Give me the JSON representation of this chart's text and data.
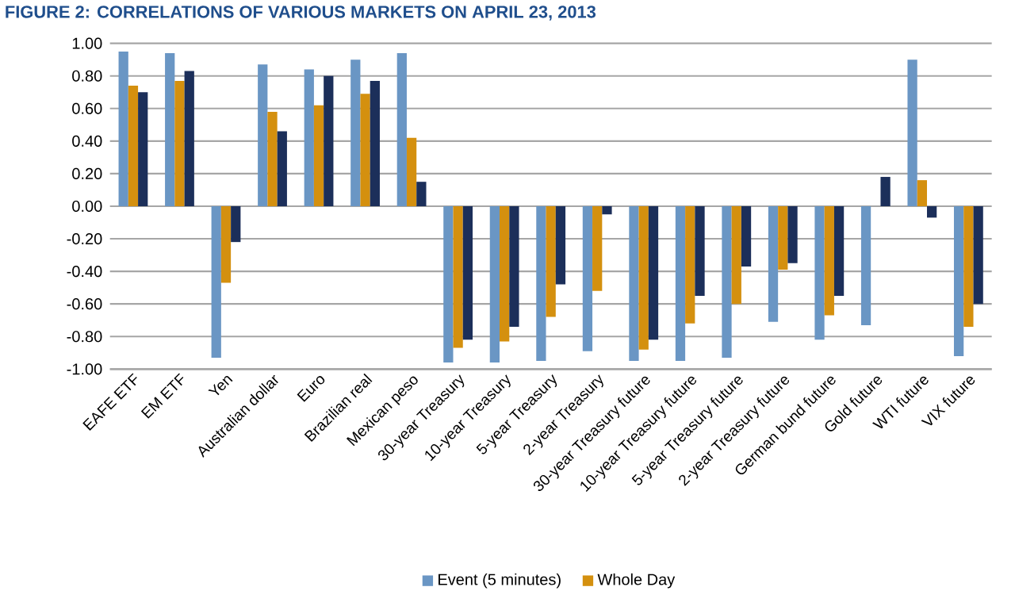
{
  "chart_data": {
    "type": "bar",
    "title": "FIGURE 2: CORRELATIONS OF VARIOUS MARKETS ON APRIL 23, 2013",
    "categories": [
      "EAFE ETF",
      "EM ETF",
      "Yen",
      "Australian dollar",
      "Euro",
      "Brazilian real",
      "Mexican peso",
      "30-year Treasury",
      "10-year Treasury",
      "5-year Treasury",
      "2-year Treasury",
      "30-year Treasury future",
      "10-year Treasury future",
      "5-year Treasury future",
      "2-year Treasury future",
      "German bund future",
      "Gold future",
      "WTI future",
      "VIX future"
    ],
    "series": [
      {
        "name": "Event (5 minutes)",
        "color": "#6a96c4",
        "values": [
          0.95,
          0.94,
          -0.93,
          0.87,
          0.84,
          0.9,
          0.94,
          -0.96,
          -0.96,
          -0.95,
          -0.89,
          -0.95,
          -0.95,
          -0.93,
          -0.71,
          -0.82,
          -0.73,
          0.9,
          -0.92
        ]
      },
      {
        "name": "Whole Day",
        "color": "#d4900f",
        "values": [
          0.74,
          0.77,
          -0.47,
          0.58,
          0.62,
          0.69,
          0.42,
          -0.87,
          -0.83,
          -0.68,
          -0.52,
          -0.88,
          -0.72,
          -0.6,
          -0.39,
          -0.67,
          null,
          0.16,
          -0.74
        ]
      },
      {
        "color": "#1c2f5a",
        "values": [
          0.7,
          0.83,
          -0.22,
          0.46,
          0.8,
          0.77,
          0.15,
          -0.82,
          -0.74,
          -0.48,
          -0.05,
          -0.82,
          -0.55,
          -0.37,
          -0.35,
          -0.55,
          0.18,
          -0.07,
          -0.6
        ]
      }
    ],
    "ylim": [
      -1,
      1
    ],
    "yticks": [
      {
        "value": -1,
        "label": "-1.00"
      },
      {
        "value": -0.8,
        "label": "-0.80"
      },
      {
        "value": -0.6,
        "label": "-0.60"
      },
      {
        "value": -0.4,
        "label": "-0.40"
      },
      {
        "value": -0.2,
        "label": "-0.20"
      },
      {
        "value": 0,
        "label": "0.00"
      },
      {
        "value": 0.2,
        "label": "0.20"
      },
      {
        "value": 0.4,
        "label": "0.40"
      },
      {
        "value": 0.6,
        "label": "0.60"
      },
      {
        "value": 0.8,
        "label": "0.80"
      },
      {
        "value": 1,
        "label": "1.00"
      }
    ],
    "grid": "y",
    "legend": "bottom"
  }
}
